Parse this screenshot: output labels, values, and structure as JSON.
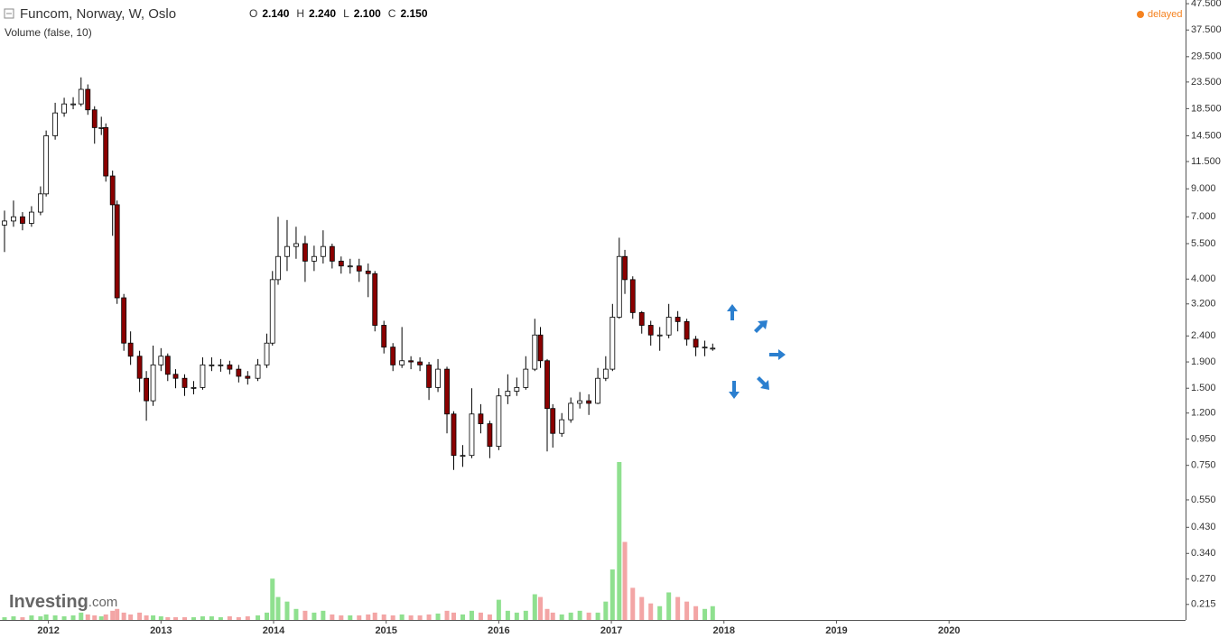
{
  "chart_data": {
    "type": "candlestick",
    "title": "Funcom, Norway, W, Oslo",
    "ohlc_header": [
      {
        "label": "O",
        "value": "2.140"
      },
      {
        "label": "H",
        "value": "2.240"
      },
      {
        "label": "L",
        "value": "2.100"
      },
      {
        "label": "C",
        "value": "2.150"
      }
    ],
    "subtitle": "Volume (false, 10)",
    "status": "delayed",
    "watermark": [
      "Investing",
      ".com"
    ],
    "log_y": true,
    "grid": false,
    "up_color": "#ffffff",
    "down_color": "#8b0000",
    "volume_up_color": "#8fe08f",
    "volume_down_color": "#f3a5a5",
    "xlim": [
      2011.57,
      2022.1
    ],
    "xticks": [
      2012,
      2013,
      2014,
      2015,
      2016,
      2017,
      2018,
      2019,
      2020
    ],
    "ylim": [
      0.187,
      49.1
    ],
    "yticks": [
      {
        "value": 47.5,
        "label": "47.500"
      },
      {
        "value": 37.5,
        "label": "37.500"
      },
      {
        "value": 29.5,
        "label": "29.500"
      },
      {
        "value": 23.5,
        "label": "23.500"
      },
      {
        "value": 18.5,
        "label": "18.500"
      },
      {
        "value": 14.5,
        "label": "14.500"
      },
      {
        "value": 11.5,
        "label": "11.500"
      },
      {
        "value": 9,
        "label": "9.000"
      },
      {
        "value": 7,
        "label": "7.000"
      },
      {
        "value": 5.5,
        "label": "5.500"
      },
      {
        "value": 4,
        "label": "4.000"
      },
      {
        "value": 3.2,
        "label": "3.200"
      },
      {
        "value": 2.4,
        "label": "2.400"
      },
      {
        "value": 1.9,
        "label": "1.900"
      },
      {
        "value": 1.5,
        "label": "1.500"
      },
      {
        "value": 1.2,
        "label": "1.200"
      },
      {
        "value": 0.95,
        "label": "0.950"
      },
      {
        "value": 0.75,
        "label": "0.750"
      },
      {
        "value": 0.55,
        "label": "0.550"
      },
      {
        "value": 0.43,
        "label": "0.430"
      },
      {
        "value": 0.34,
        "label": "0.340"
      },
      {
        "value": 0.27,
        "label": "0.270"
      },
      {
        "value": 0.215,
        "label": "0.215"
      }
    ],
    "x": [
      2011.61,
      2011.69,
      2011.77,
      2011.85,
      2011.93,
      2011.98,
      2012.06,
      2012.14,
      2012.22,
      2012.29,
      2012.35,
      2012.41,
      2012.47,
      2012.51,
      2012.57,
      2012.61,
      2012.67,
      2012.73,
      2012.81,
      2012.87,
      2012.93,
      2013.0,
      2013.06,
      2013.13,
      2013.21,
      2013.29,
      2013.37,
      2013.45,
      2013.53,
      2013.61,
      2013.69,
      2013.77,
      2013.86,
      2013.94,
      2013.99,
      2014.04,
      2014.12,
      2014.2,
      2014.28,
      2014.36,
      2014.44,
      2014.52,
      2014.6,
      2014.68,
      2014.76,
      2014.84,
      2014.9,
      2014.98,
      2015.06,
      2015.14,
      2015.22,
      2015.3,
      2015.38,
      2015.46,
      2015.54,
      2015.6,
      2015.68,
      2015.76,
      2015.84,
      2015.92,
      2016.0,
      2016.08,
      2016.16,
      2016.24,
      2016.32,
      2016.37,
      2016.43,
      2016.48,
      2016.56,
      2016.64,
      2016.72,
      2016.8,
      2016.88,
      2016.95,
      2017.01,
      2017.07,
      2017.12,
      2017.19,
      2017.27,
      2017.35,
      2017.43,
      2017.51,
      2017.59,
      2017.67,
      2017.75,
      2017.83,
      2017.9
    ],
    "open": [
      6.5,
      6.74,
      7.0,
      6.6,
      7.3,
      8.6,
      14.5,
      17.8,
      19.3,
      19.3,
      22,
      18.3,
      15.6,
      15.6,
      10.1,
      7.8,
      3.38,
      2.25,
      2.0,
      1.64,
      1.34,
      1.85,
      2.0,
      1.7,
      1.64,
      1.51,
      1.51,
      1.85,
      1.85,
      1.85,
      1.78,
      1.67,
      1.64,
      1.85,
      2.25,
      3.98,
      4.9,
      5.36,
      5.5,
      4.7,
      4.9,
      5.36,
      4.7,
      4.5,
      4.5,
      4.3,
      4.2,
      2.64,
      2.17,
      1.85,
      1.92,
      1.9,
      1.85,
      1.51,
      1.78,
      1.19,
      0.82,
      0.82,
      1.19,
      1.09,
      0.89,
      1.4,
      1.46,
      1.51,
      1.78,
      2.42,
      1.92,
      1.25,
      1.0,
      1.13,
      1.31,
      1.34,
      1.31,
      1.64,
      1.78,
      2.84,
      4.9,
      3.98,
      2.96,
      2.64,
      2.42,
      2.42,
      2.84,
      2.73,
      2.33,
      2.17,
      2.14
    ],
    "high": [
      7.4,
      8.1,
      7.3,
      7.7,
      9.2,
      15.2,
      19.5,
      20.4,
      20.5,
      24.5,
      23,
      18.9,
      17.2,
      16.2,
      10.6,
      8.1,
      3.5,
      2.5,
      2.1,
      1.75,
      2.2,
      2.15,
      2.05,
      1.78,
      1.7,
      1.6,
      1.98,
      1.98,
      1.95,
      1.92,
      1.85,
      1.75,
      1.95,
      2.45,
      4.3,
      7.0,
      6.8,
      6.4,
      5.9,
      5.4,
      6.2,
      5.5,
      4.9,
      4.8,
      4.8,
      4.6,
      4.3,
      2.75,
      2.25,
      2.6,
      2.0,
      1.98,
      1.9,
      1.95,
      1.82,
      1.22,
      0.9,
      1.5,
      1.3,
      1.12,
      1.5,
      1.7,
      1.65,
      2.0,
      2.8,
      2.6,
      1.95,
      1.3,
      1.2,
      1.38,
      1.45,
      1.42,
      1.8,
      2.0,
      3.2,
      5.8,
      5.2,
      4.1,
      3.0,
      2.75,
      2.6,
      3.2,
      3.0,
      2.8,
      2.4,
      2.3,
      2.24
    ],
    "low": [
      5.1,
      6.4,
      6.2,
      6.4,
      7.1,
      8.4,
      14.0,
      17.2,
      18.4,
      18.9,
      17.5,
      13.5,
      14.6,
      9.6,
      5.9,
      3.2,
      2.1,
      1.85,
      1.45,
      1.12,
      1.28,
      1.75,
      1.6,
      1.5,
      1.4,
      1.42,
      1.48,
      1.75,
      1.74,
      1.7,
      1.58,
      1.55,
      1.6,
      1.8,
      2.2,
      3.8,
      4.3,
      4.8,
      3.9,
      4.3,
      4.6,
      4.4,
      4.2,
      4.2,
      3.9,
      3.4,
      2.5,
      2.05,
      1.75,
      1.8,
      1.78,
      1.75,
      1.35,
      1.45,
      1.0,
      0.72,
      0.74,
      0.8,
      1.0,
      0.8,
      0.86,
      1.3,
      1.4,
      1.48,
      1.75,
      1.8,
      0.85,
      0.88,
      0.97,
      1.1,
      1.25,
      1.18,
      1.3,
      1.6,
      1.75,
      2.8,
      3.5,
      2.8,
      2.45,
      2.2,
      2.1,
      2.35,
      2.5,
      2.2,
      2.0,
      2.0,
      2.1
    ],
    "close": [
      6.74,
      7.0,
      6.6,
      7.3,
      8.6,
      14.5,
      17.8,
      19.3,
      19.3,
      22,
      18.3,
      15.6,
      15.6,
      10.1,
      7.8,
      3.38,
      2.25,
      2.0,
      1.64,
      1.34,
      1.85,
      2.0,
      1.7,
      1.64,
      1.51,
      1.51,
      1.85,
      1.85,
      1.85,
      1.78,
      1.67,
      1.64,
      1.85,
      2.25,
      3.98,
      4.9,
      5.36,
      5.5,
      4.7,
      4.9,
      5.36,
      4.7,
      4.5,
      4.5,
      4.3,
      4.2,
      2.64,
      2.17,
      1.85,
      1.92,
      1.9,
      1.85,
      1.51,
      1.78,
      1.19,
      0.82,
      0.82,
      1.19,
      1.09,
      0.89,
      1.4,
      1.46,
      1.51,
      1.78,
      2.42,
      1.92,
      1.25,
      1.0,
      1.13,
      1.31,
      1.34,
      1.31,
      1.64,
      1.78,
      2.84,
      4.9,
      3.98,
      2.96,
      2.64,
      2.42,
      2.42,
      2.84,
      2.73,
      2.33,
      2.17,
      2.17,
      2.15
    ],
    "volume": [
      3,
      4,
      3,
      5,
      4,
      6,
      5,
      4,
      5,
      8,
      6,
      5,
      4,
      6,
      10,
      12,
      8,
      6,
      8,
      5,
      5,
      4,
      3,
      3,
      3,
      3,
      4,
      4,
      3,
      4,
      3,
      4,
      5,
      8,
      45,
      25,
      20,
      12,
      10,
      8,
      10,
      6,
      5,
      5,
      5,
      6,
      8,
      6,
      5,
      6,
      5,
      5,
      6,
      7,
      10,
      8,
      6,
      10,
      8,
      6,
      22,
      10,
      8,
      10,
      28,
      25,
      12,
      8,
      6,
      8,
      10,
      8,
      8,
      20,
      55,
      172,
      85,
      35,
      25,
      18,
      15,
      30,
      25,
      20,
      15,
      12,
      15
    ]
  }
}
